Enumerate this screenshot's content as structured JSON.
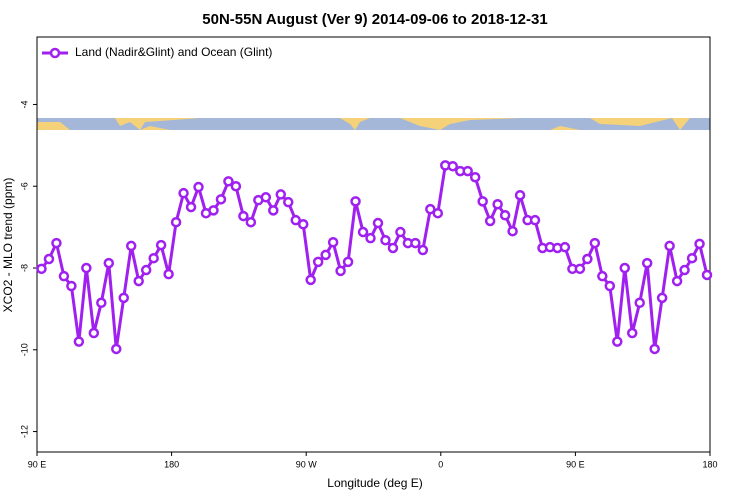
{
  "chart_data": {
    "type": "line",
    "title": "50N-55N August (Ver 9)   2014-09-06 to 2018-12-31",
    "x_label": "Longitude (deg E)",
    "y_label": "XCO2 - MLO trend (ppm)",
    "x": [
      93,
      98,
      103,
      108,
      113,
      118,
      123,
      128,
      133,
      138,
      143,
      148,
      153,
      158,
      163,
      168,
      173,
      178,
      183,
      188,
      193,
      198,
      203,
      208,
      213,
      218,
      223,
      228,
      233,
      238,
      243,
      248,
      253,
      258,
      263,
      268,
      273,
      278,
      283,
      288,
      293,
      298,
      303,
      308,
      313,
      318,
      323,
      328,
      333,
      338,
      343,
      348,
      353,
      358,
      363,
      368,
      373,
      378,
      383,
      388,
      393,
      398,
      403,
      408,
      413,
      418,
      423,
      428,
      433,
      438,
      443,
      448,
      453,
      458,
      463,
      468,
      473,
      478,
      483,
      488,
      493,
      498,
      503,
      508,
      513,
      518,
      523,
      528,
      533,
      538
    ],
    "series": [
      {
        "name": "Land (Nadir&Glint) and Ocean (Glint)",
        "color": "#a020f0",
        "values": [
          -8.02,
          -7.78,
          -7.39,
          -8.2,
          -8.44,
          -9.8,
          -8.0,
          -9.59,
          -8.85,
          -7.88,
          -9.98,
          -8.73,
          -7.46,
          -8.32,
          -8.05,
          -7.76,
          -7.44,
          -8.15,
          -6.88,
          -6.17,
          -6.51,
          -6.02,
          -6.66,
          -6.59,
          -6.32,
          -5.88,
          -6.0,
          -6.73,
          -6.88,
          -6.34,
          -6.27,
          -6.59,
          -6.2,
          -6.39,
          -6.83,
          -6.93,
          -8.29,
          -7.85,
          -7.68,
          -7.37,
          -8.07,
          -7.85,
          -6.37,
          -7.12,
          -7.27,
          -6.9,
          -7.32,
          -7.51,
          -7.12,
          -7.39,
          -7.39,
          -7.56,
          -6.56,
          -6.66,
          -5.49,
          -5.51,
          -5.63,
          -5.63,
          -5.78,
          -6.37,
          -6.85,
          -6.44,
          -6.71,
          -7.1,
          -6.22,
          -6.83,
          -6.83,
          -7.51,
          -7.49,
          -7.51,
          -7.49,
          -8.02,
          -8.02,
          -7.78,
          -7.39,
          -8.2,
          -8.44,
          -9.8,
          -8.0,
          -9.59,
          -8.85,
          -7.88,
          -9.98,
          -8.73,
          -7.46,
          -8.32,
          -8.05,
          -7.76,
          -7.41,
          -8.17
        ]
      }
    ],
    "xlim": [
      90,
      540
    ],
    "xticks": [
      {
        "value": 90,
        "label": "90 E"
      },
      180,
      {
        "value": 270,
        "label": "90 W"
      },
      {
        "value": 360,
        "label": "0"
      },
      {
        "value": 450,
        "label": "90 E"
      },
      {
        "value": 540,
        "label": "180"
      }
    ],
    "ylim": [
      -12.5,
      -2.35
    ],
    "yticks": [
      -4,
      -6,
      -8,
      -10,
      -12
    ],
    "legend": "top-left"
  }
}
